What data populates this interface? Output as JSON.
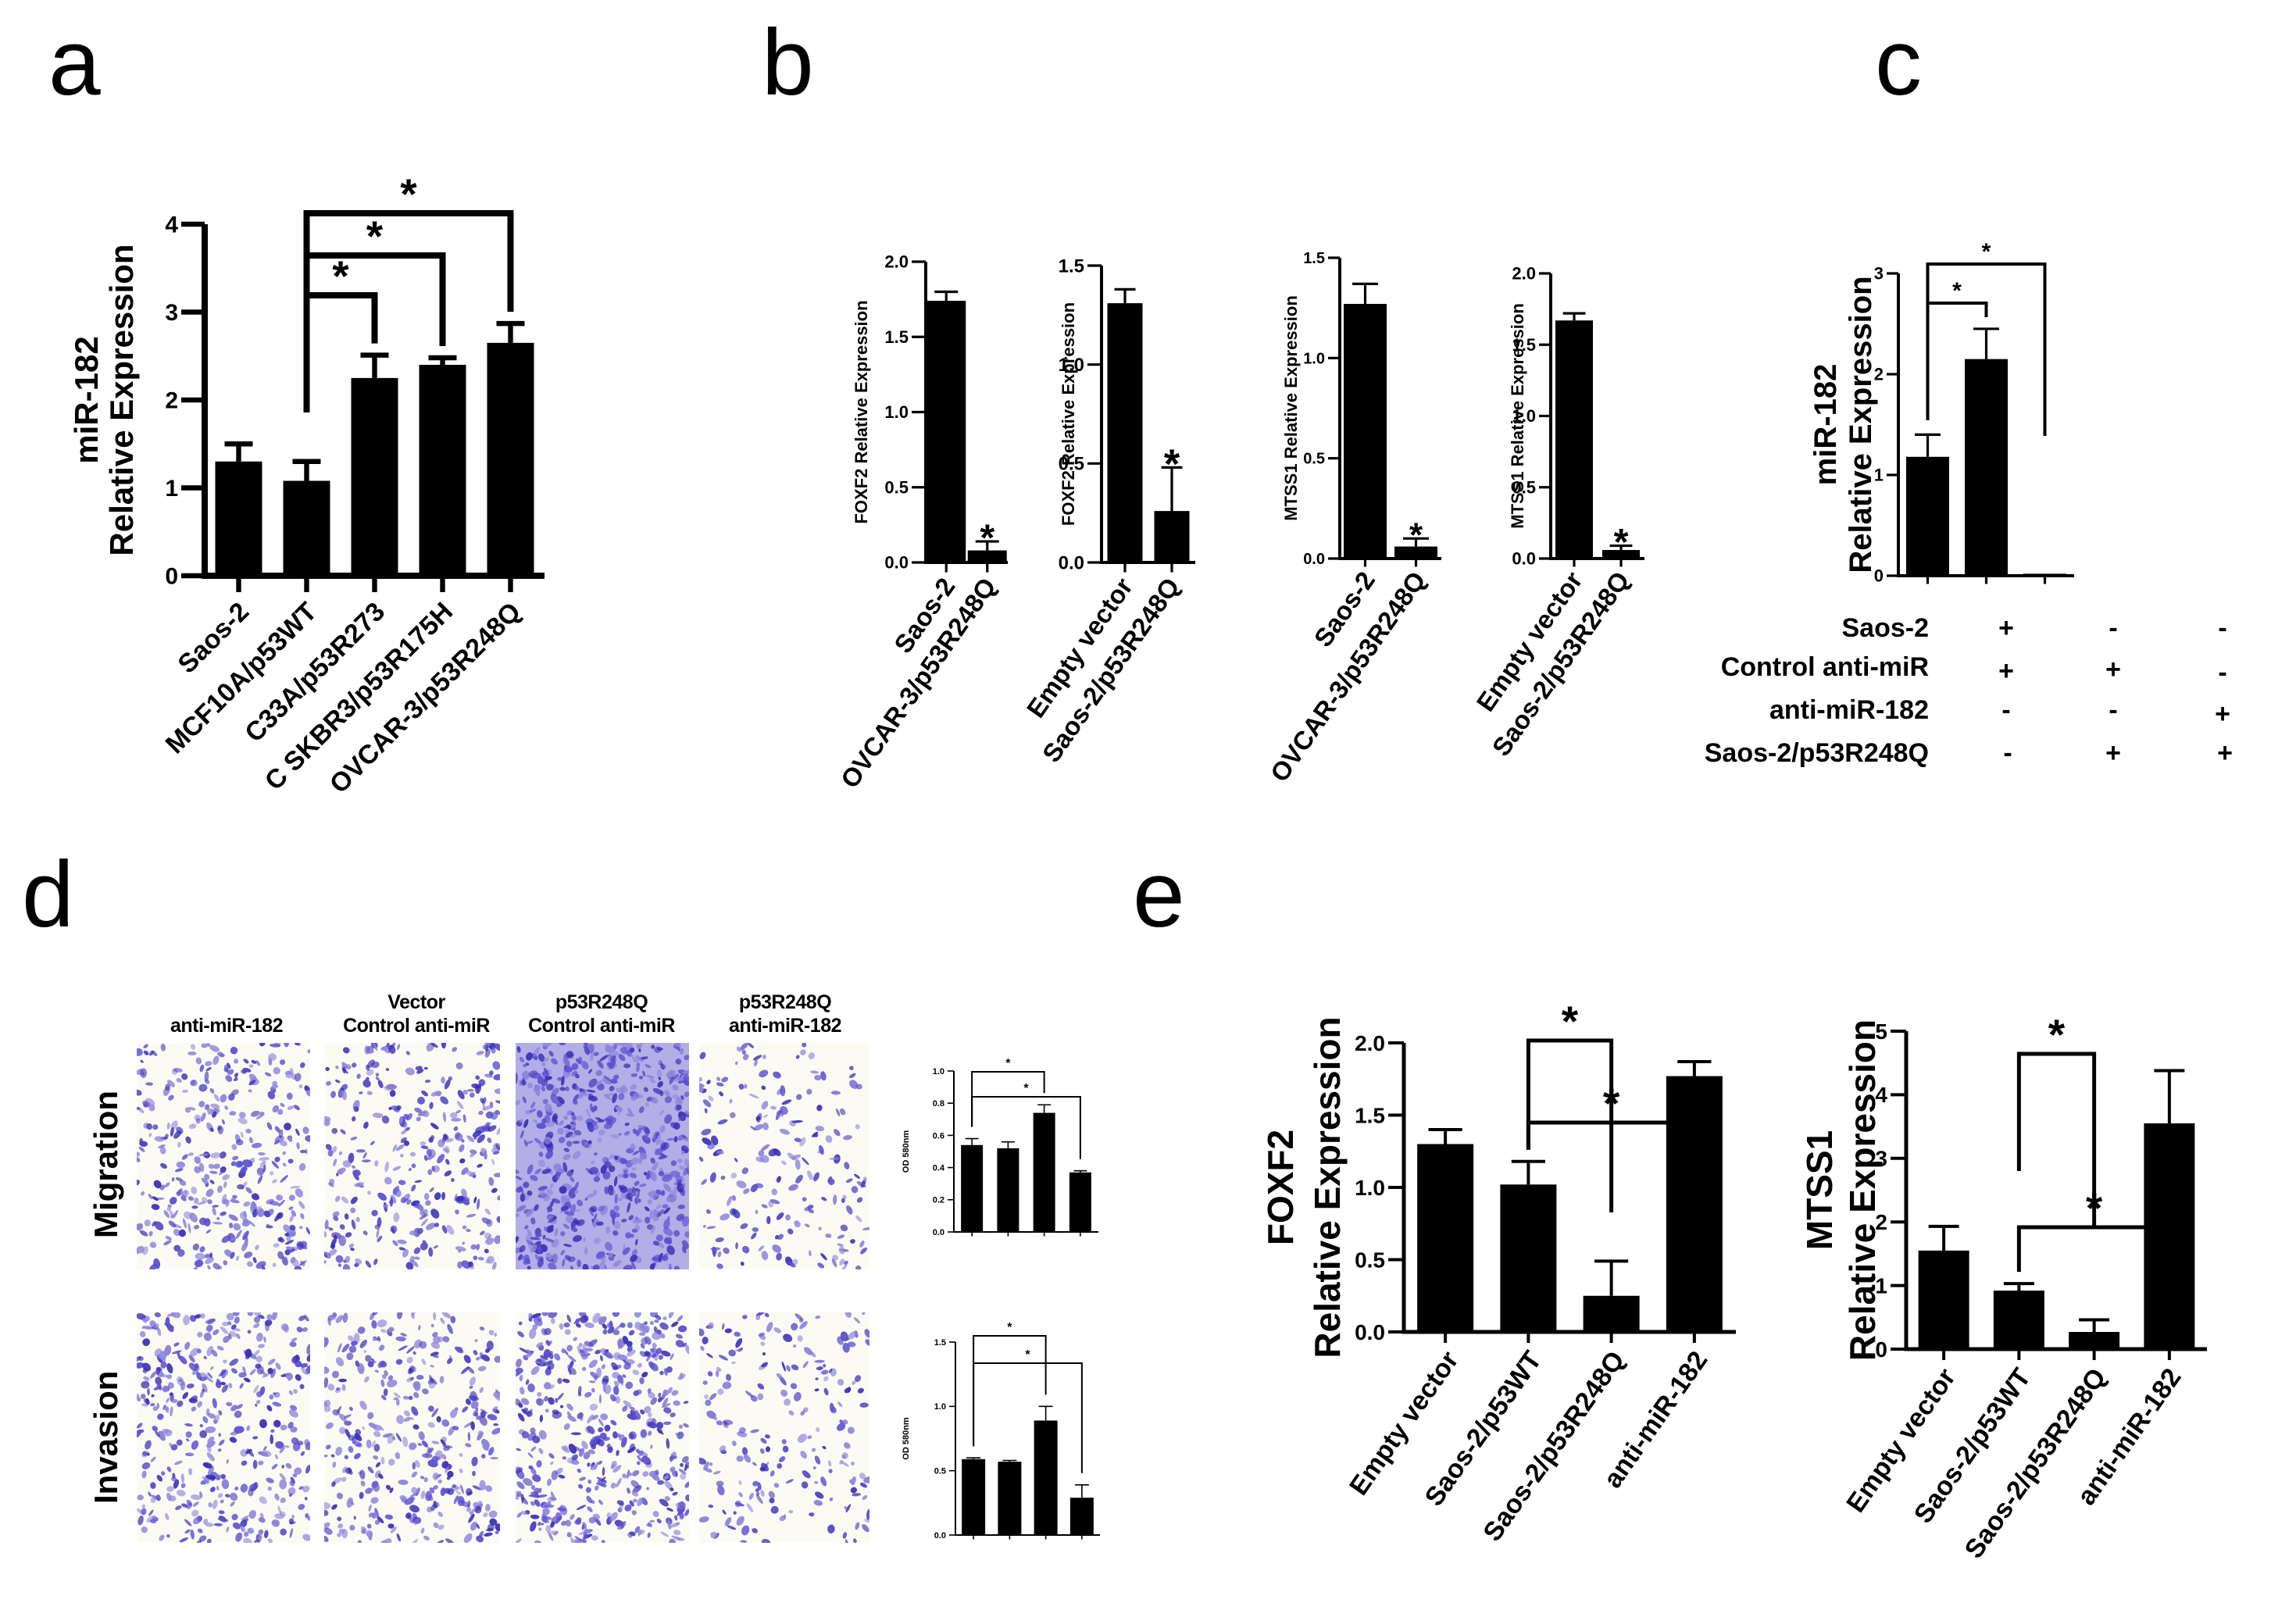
{
  "panels": {
    "a": {
      "letter": "a"
    },
    "b": {
      "letter": "b"
    },
    "c": {
      "letter": "c"
    },
    "d": {
      "letter": "d"
    },
    "e": {
      "letter": "e"
    }
  },
  "panel_d": {
    "conditions": [
      {
        "line1": "",
        "line2": "anti-miR-182"
      },
      {
        "line1": "Vector",
        "line2": "Control anti-miR"
      },
      {
        "line1": "p53R248Q",
        "line2": "Control anti-miR"
      },
      {
        "line1": "p53R248Q",
        "line2": "anti-miR-182"
      }
    ],
    "rows": [
      "Migration",
      "Invasion"
    ],
    "stain_color": "#4b3fc4"
  },
  "panel_c_table": {
    "rows": [
      {
        "label": "Saos-2",
        "signs": [
          "+",
          "-",
          "-"
        ]
      },
      {
        "label": "Control anti-miR",
        "signs": [
          "+",
          "+",
          "-"
        ]
      },
      {
        "label": "anti-miR-182",
        "signs": [
          "-",
          "-",
          "+"
        ]
      },
      {
        "label": "Saos-2/p53R248Q",
        "signs": [
          "-",
          "+",
          "+"
        ]
      }
    ]
  },
  "chart_data": [
    {
      "id": "a",
      "type": "bar",
      "title": "",
      "ylabel": "miR-182\nRelative Expression",
      "ylabel_lines": [
        "miR-182",
        "Relative Expression"
      ],
      "categories": [
        "Saos-2",
        "MCF10A/p53WT",
        "C33A/p53R273",
        "C SKBR3/p53R175H",
        "OVCAR-3/p53R248Q"
      ],
      "values": [
        1.3,
        1.08,
        2.25,
        2.4,
        2.65
      ],
      "errors": [
        0.2,
        0.22,
        0.26,
        0.08,
        0.22
      ],
      "ylim": [
        0,
        4
      ],
      "yticks": [
        "0",
        "1",
        "2",
        "3",
        "4"
      ],
      "significance": [
        {
          "from": 1,
          "to": 2,
          "label": "*"
        },
        {
          "from": 1,
          "to": 3,
          "label": "*"
        },
        {
          "from": 1,
          "to": 4,
          "label": "*"
        }
      ],
      "grid": false
    },
    {
      "id": "b1",
      "type": "bar",
      "ylabel": "FOXF2 Relative Expression",
      "categories": [
        "Saos-2",
        "OVCAR-3/p53R248Q"
      ],
      "values": [
        1.74,
        0.08
      ],
      "errors": [
        0.06,
        0.06
      ],
      "ylim": [
        0,
        2.0
      ],
      "yticks": [
        "0.0",
        "0.5",
        "1.0",
        "1.5",
        "2.0"
      ],
      "annotations": [
        {
          "bar": 1,
          "label": "*"
        }
      ]
    },
    {
      "id": "b2",
      "type": "bar",
      "ylabel": "FOXF2 Relative Expression",
      "categories": [
        "Empty vector",
        "Saos-2/p53R248Q"
      ],
      "values": [
        1.31,
        0.26
      ],
      "errors": [
        0.07,
        0.22
      ],
      "ylim": [
        0,
        1.5
      ],
      "yticks": [
        "0.0",
        "0.5",
        "1.0",
        "1.5"
      ],
      "annotations": [
        {
          "bar": 1,
          "label": "*"
        }
      ]
    },
    {
      "id": "b3",
      "type": "bar",
      "ylabel": "MTSS1 Relative Expression",
      "categories": [
        "Saos-2",
        "OVCAR-3/p53R248Q"
      ],
      "values": [
        1.27,
        0.06
      ],
      "errors": [
        0.1,
        0.04
      ],
      "ylim": [
        0,
        1.5
      ],
      "yticks": [
        "0.0",
        "0.5",
        "1.0",
        "1.5"
      ],
      "annotations": [
        {
          "bar": 1,
          "label": "*"
        }
      ]
    },
    {
      "id": "b4",
      "type": "bar",
      "ylabel": "MTSS1 Relative Expression",
      "categories": [
        "Empty vector",
        "Saos-2/p53R248Q"
      ],
      "values": [
        1.67,
        0.06
      ],
      "errors": [
        0.05,
        0.03
      ],
      "ylim": [
        0,
        2.0
      ],
      "yticks": [
        "0.0",
        "0.5",
        "1.0",
        "1.5",
        "2.0"
      ],
      "annotations": [
        {
          "bar": 1,
          "label": "*"
        }
      ]
    },
    {
      "id": "c",
      "type": "bar",
      "ylabel_lines": [
        "miR-182",
        "Relative Expression"
      ],
      "categories": [
        "Saos-2 + Control anti-miR",
        "Saos-2/p53R248Q + Control anti-miR",
        "Saos-2/p53R248Q + anti-miR-182"
      ],
      "values": [
        1.18,
        2.15,
        0.02
      ],
      "errors": [
        0.22,
        0.3,
        0.0
      ],
      "ylim": [
        0,
        3
      ],
      "yticks": [
        "0",
        "1",
        "2",
        "3"
      ],
      "significance": [
        {
          "from": 0,
          "to": 1,
          "label": "*"
        },
        {
          "from": 0,
          "to": 2,
          "label": "*"
        }
      ]
    },
    {
      "id": "d_migration",
      "type": "bar",
      "ylabel": "OD 580nm",
      "categories": [
        "anti-miR-182",
        "Vector Control anti-miR",
        "p53R248Q Control anti-miR",
        "p53R248Q anti-miR-182"
      ],
      "values": [
        0.54,
        0.52,
        0.74,
        0.37
      ],
      "errors": [
        0.04,
        0.04,
        0.05,
        0.01
      ],
      "ylim": [
        0,
        1.0
      ],
      "yticks": [
        "0.0",
        "0.2",
        "0.4",
        "0.6",
        "0.8",
        "1.0"
      ],
      "significance": [
        {
          "from": 0,
          "to": 2,
          "label": "*"
        },
        {
          "from": 0,
          "to": 3,
          "label": "*"
        }
      ]
    },
    {
      "id": "d_invasion",
      "type": "bar",
      "ylabel": "OD 580nm",
      "categories": [
        "anti-miR-182",
        "Vector Control anti-miR",
        "p53R248Q Control anti-miR",
        "p53R248Q anti-miR-182"
      ],
      "values": [
        0.59,
        0.57,
        0.89,
        0.29
      ],
      "errors": [
        0.01,
        0.01,
        0.11,
        0.1
      ],
      "ylim": [
        0,
        1.5
      ],
      "yticks": [
        "0.0",
        "0.5",
        "1.0",
        "1.5"
      ],
      "significance": [
        {
          "from": 0,
          "to": 2,
          "label": "*"
        },
        {
          "from": 0,
          "to": 3,
          "label": "*"
        }
      ]
    },
    {
      "id": "e_foxf2",
      "type": "bar",
      "ylabel_lines": [
        "FOXF2",
        "Relative Expression"
      ],
      "categories": [
        "Empty vector",
        "Saos-2/p53WT",
        "Saos-2/p53R248Q",
        "anti-miR-182"
      ],
      "values": [
        1.3,
        1.02,
        0.25,
        1.77
      ],
      "errors": [
        0.1,
        0.16,
        0.24,
        0.1
      ],
      "ylim": [
        0,
        2.0
      ],
      "yticks": [
        "0.0",
        "0.5",
        "1.0",
        "1.5",
        "2.0"
      ],
      "significance": [
        {
          "from": 1,
          "to": 2,
          "label": "*"
        },
        {
          "from": 1,
          "to": 3,
          "label": "*"
        }
      ]
    },
    {
      "id": "e_mtss1",
      "type": "bar",
      "ylabel_lines": [
        "MTSS1",
        "Relative Expression"
      ],
      "categories": [
        "Empty vector",
        "Saos-2/p53WT",
        "Saos-2/p53R248Q",
        "anti-miR-182"
      ],
      "values": [
        1.55,
        0.92,
        0.27,
        3.55
      ],
      "errors": [
        0.38,
        0.11,
        0.19,
        0.83
      ],
      "ylim": [
        0,
        5
      ],
      "yticks": [
        "0",
        "1",
        "2",
        "3",
        "4",
        "5"
      ],
      "significance": [
        {
          "from": 1,
          "to": 2,
          "label": "*"
        },
        {
          "from": 1,
          "to": 3,
          "label": "*"
        }
      ]
    }
  ]
}
